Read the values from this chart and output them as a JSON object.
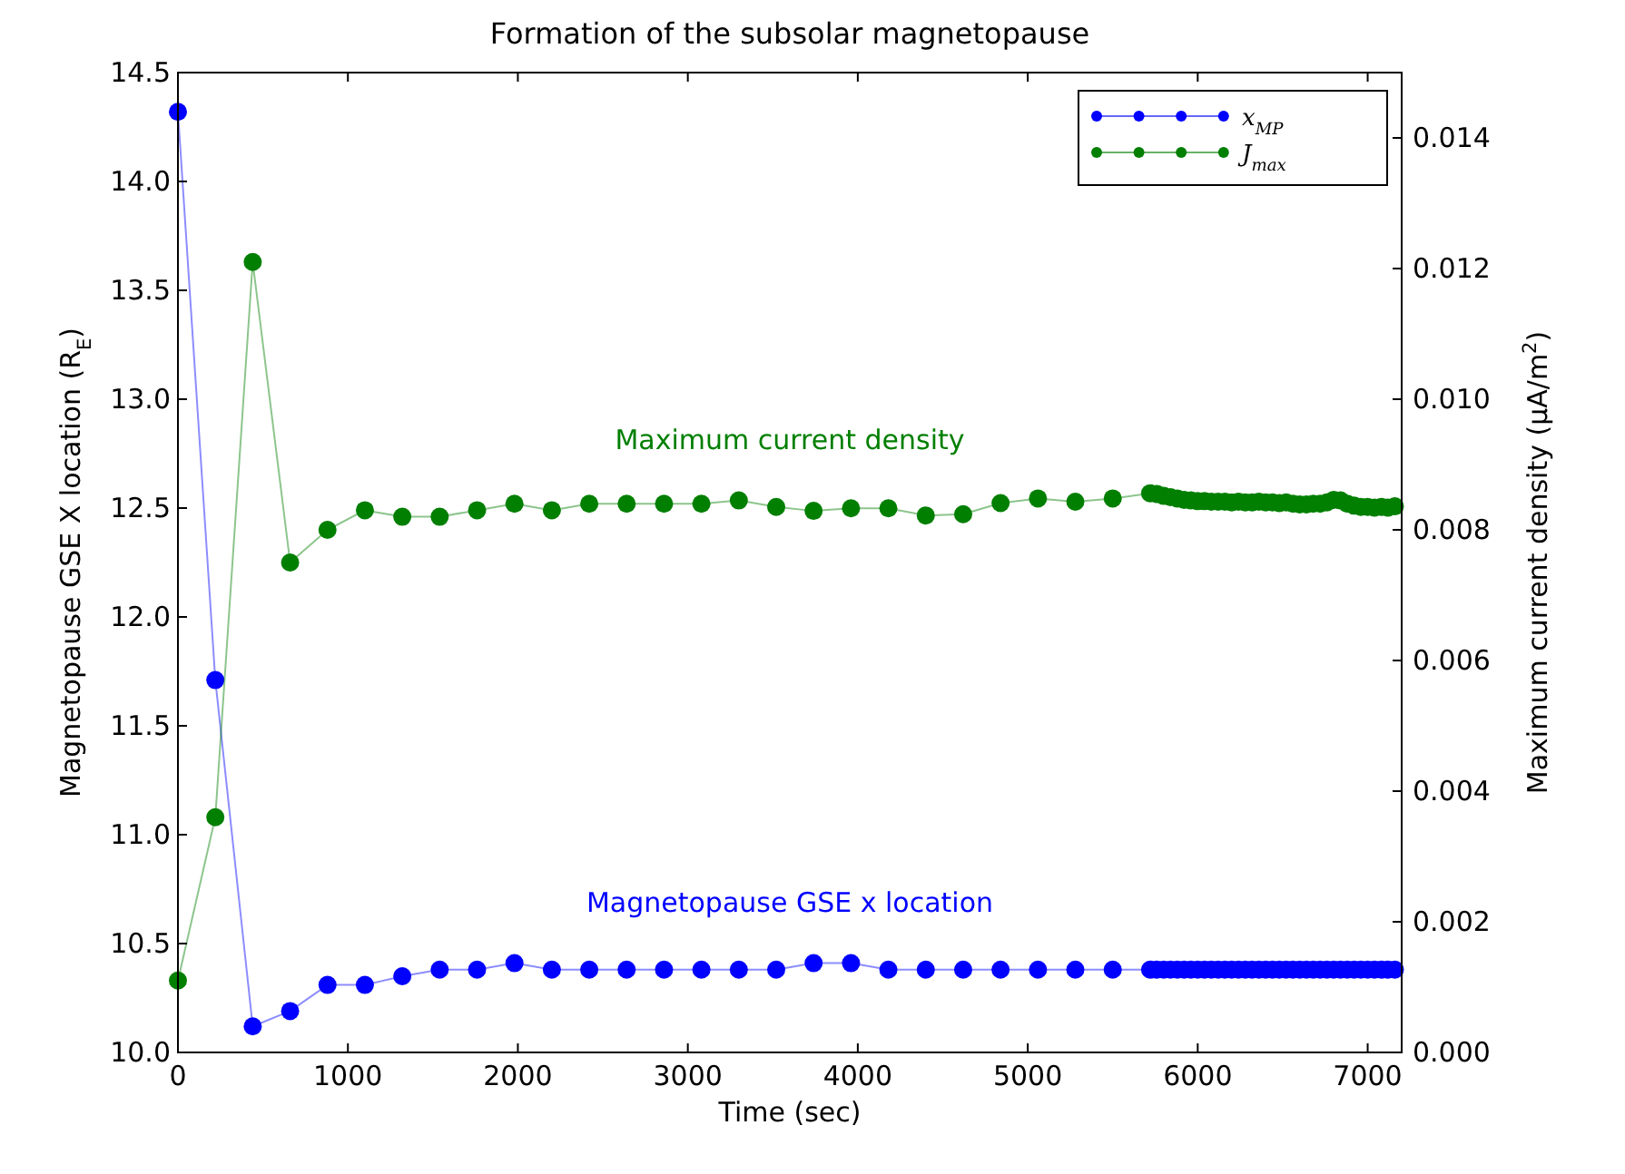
{
  "chart_data": {
    "type": "line",
    "title": "Formation of the subsolar magnetopause",
    "xlabel": "Time (sec)",
    "ylabel": "Magnetopause GSE X location (R$_{E}$)",
    "y2label": "Maximum current density (μA/m$^{2}$)",
    "xlim": [
      0,
      7200
    ],
    "xticks": [
      0,
      1000,
      2000,
      3000,
      4000,
      5000,
      6000,
      7000
    ],
    "ylim": [
      10,
      14.5
    ],
    "yticks": [
      {
        "value": 10,
        "label": "10.0"
      },
      {
        "value": 10.5,
        "label": "10.5"
      },
      {
        "value": 11,
        "label": "11.0"
      },
      {
        "value": 11.5,
        "label": "11.5"
      },
      {
        "value": 12,
        "label": "12.0"
      },
      {
        "value": 12.5,
        "label": "12.5"
      },
      {
        "value": 13,
        "label": "13.0"
      },
      {
        "value": 13.5,
        "label": "13.5"
      },
      {
        "value": 14,
        "label": "14.0"
      },
      {
        "value": 14.5,
        "label": "14.5"
      }
    ],
    "y2lim": [
      0,
      0.015
    ],
    "y2ticks": [
      {
        "value": 0,
        "label": "0.000"
      },
      {
        "value": 0.002,
        "label": "0.002"
      },
      {
        "value": 0.004,
        "label": "0.004"
      },
      {
        "value": 0.006,
        "label": "0.006"
      },
      {
        "value": 0.008,
        "label": "0.008"
      },
      {
        "value": 0.01,
        "label": "0.010"
      },
      {
        "value": 0.012,
        "label": "0.012"
      },
      {
        "value": 0.014,
        "label": "0.014"
      }
    ],
    "x": [
      0,
      220,
      440,
      660,
      880,
      1100,
      1320,
      1540,
      1760,
      1980,
      2200,
      2420,
      2640,
      2860,
      3080,
      3300,
      3520,
      3740,
      3960,
      4180,
      4400,
      4620,
      4840,
      5060,
      5280,
      5500,
      5720,
      5760,
      5800,
      5840,
      5880,
      5920,
      5960,
      6000,
      6040,
      6080,
      6120,
      6160,
      6200,
      6240,
      6280,
      6320,
      6360,
      6400,
      6440,
      6480,
      6520,
      6560,
      6600,
      6640,
      6680,
      6720,
      6760,
      6800,
      6840,
      6880,
      6920,
      6960,
      7000,
      7040,
      7080,
      7120,
      7160
    ],
    "marker": "circle",
    "grid": false,
    "legend": "top right",
    "series": [
      {
        "name": "x$_{MP}$",
        "color": "#0000ff",
        "values": [
          14.32,
          11.71,
          10.12,
          10.19,
          10.31,
          10.31,
          10.35,
          10.38,
          10.38,
          10.41,
          10.38,
          10.38,
          10.38,
          10.38,
          10.38,
          10.38,
          10.38,
          10.41,
          10.41,
          10.38,
          10.38,
          10.38,
          10.38,
          10.38,
          10.38,
          10.38,
          10.38,
          10.38,
          10.38,
          10.38,
          10.38,
          10.38,
          10.38,
          10.38,
          10.38,
          10.38,
          10.38,
          10.38,
          10.38,
          10.38,
          10.38,
          10.38,
          10.38,
          10.38,
          10.38,
          10.38,
          10.38,
          10.38,
          10.38,
          10.38,
          10.38,
          10.38,
          10.38,
          10.38,
          10.38,
          10.38,
          10.38,
          10.38,
          10.38,
          10.38,
          10.38,
          10.38,
          10.38
        ]
      },
      {
        "name": "J$_{max}$",
        "color": "#007f00",
        "axis": "y2",
        "values": [
          0.0011,
          0.0036,
          0.0121,
          0.0075,
          0.008,
          0.0083,
          0.0082,
          0.0082,
          0.0083,
          0.0084,
          0.0083,
          0.0084,
          0.0084,
          0.0084,
          0.0084,
          0.00845,
          0.00835,
          0.00829,
          0.00833,
          0.00833,
          0.00822,
          0.00824,
          0.00841,
          0.00848,
          0.00843,
          0.00848,
          0.00856,
          0.00855,
          0.00852,
          0.0085,
          0.00848,
          0.00846,
          0.00845,
          0.00844,
          0.00844,
          0.00843,
          0.00843,
          0.00843,
          0.00842,
          0.00843,
          0.00842,
          0.00842,
          0.00843,
          0.00842,
          0.00842,
          0.00841,
          0.00842,
          0.0084,
          0.00839,
          0.00839,
          0.0084,
          0.0084,
          0.00842,
          0.00846,
          0.00845,
          0.0084,
          0.00837,
          0.00835,
          0.00835,
          0.00834,
          0.00835,
          0.00834,
          0.00836
        ]
      }
    ],
    "annotations": [
      "Magnetopause GSE x location",
      "Maximum current density"
    ]
  }
}
